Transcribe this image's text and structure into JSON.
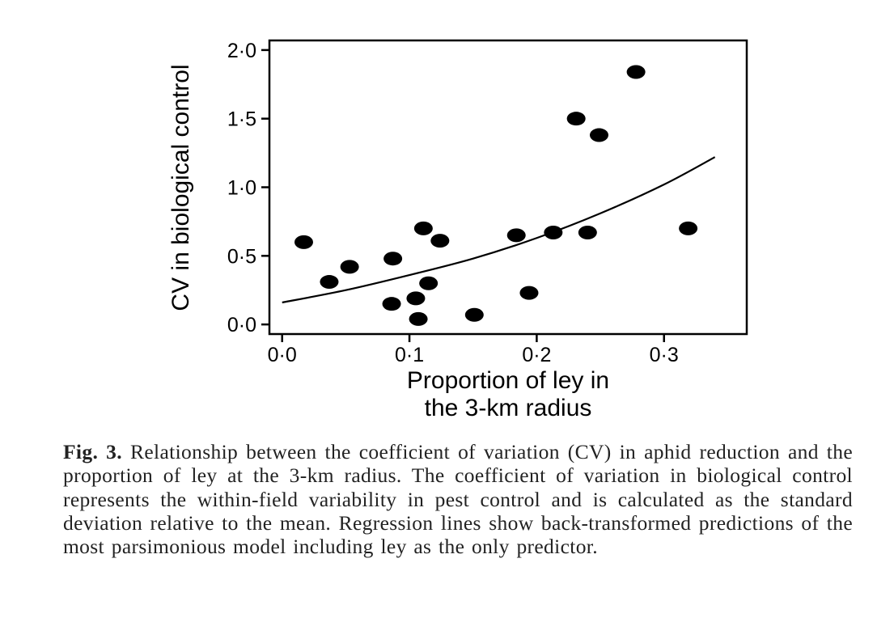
{
  "chart_data": {
    "type": "scatter",
    "xlabel_lines": [
      "Proportion of ley in",
      "the 3-km radius"
    ],
    "ylabel": "CV in biological control",
    "xlim": [
      -0.01,
      0.365
    ],
    "ylim": [
      -0.07,
      2.07
    ],
    "xticks": [
      0.0,
      0.1,
      0.2,
      0.3
    ],
    "xtick_labels": [
      "0·0",
      "0·1",
      "0·2",
      "0·3"
    ],
    "yticks": [
      0.0,
      0.5,
      1.0,
      1.5,
      2.0
    ],
    "ytick_labels": [
      "0·0",
      "0·5",
      "1·0",
      "1·5",
      "2·0"
    ],
    "grid": false,
    "points": [
      {
        "x": 0.017,
        "y": 0.6
      },
      {
        "x": 0.037,
        "y": 0.31
      },
      {
        "x": 0.053,
        "y": 0.42
      },
      {
        "x": 0.086,
        "y": 0.15
      },
      {
        "x": 0.087,
        "y": 0.48
      },
      {
        "x": 0.105,
        "y": 0.19
      },
      {
        "x": 0.107,
        "y": 0.04
      },
      {
        "x": 0.111,
        "y": 0.7
      },
      {
        "x": 0.115,
        "y": 0.3
      },
      {
        "x": 0.124,
        "y": 0.61
      },
      {
        "x": 0.151,
        "y": 0.07
      },
      {
        "x": 0.184,
        "y": 0.65
      },
      {
        "x": 0.194,
        "y": 0.23
      },
      {
        "x": 0.213,
        "y": 0.67
      },
      {
        "x": 0.231,
        "y": 1.5
      },
      {
        "x": 0.24,
        "y": 0.67
      },
      {
        "x": 0.249,
        "y": 1.38
      },
      {
        "x": 0.278,
        "y": 1.84
      },
      {
        "x": 0.319,
        "y": 0.7
      }
    ],
    "regression_line": {
      "x": [
        0.0,
        0.05,
        0.1,
        0.15,
        0.2,
        0.25,
        0.3,
        0.34
      ],
      "y": [
        0.16,
        0.25,
        0.36,
        0.48,
        0.63,
        0.81,
        1.02,
        1.22
      ]
    }
  },
  "caption": {
    "label": "Fig. 3.",
    "text": "Relationship between the coefficient of variation (CV) in aphid reduction and the proportion of ley at the 3-km radius. The coefficient of variation in biological control represents the within-field variability in pest control and is calculated as the standard deviation relative to the mean. Regression lines show back-transformed predictions of the most parsimonious model including ley as the only predictor."
  }
}
